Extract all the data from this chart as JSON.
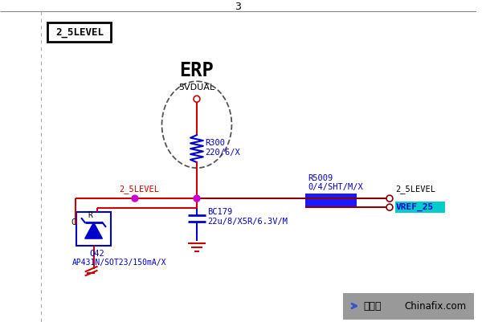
{
  "bg": "white",
  "red": "#cc0000",
  "blue": "#0000cc",
  "magenta": "#cc00cc",
  "dark_red": "#880000",
  "lw": 1.5,
  "label_2_5level": "2_5LEVEL",
  "erp": "ERP",
  "5vdual": "5VDUAL",
  "r300": "R300\n220/6/X",
  "r5009": "R5009\n0/4/SHT/M/X",
  "bc179": "BC179\n22u/8/X5R/6.3V/M",
  "q42": "Q42",
  "q42part": "AP431N/SOT23/150mA/X",
  "vref25": "VREF_25",
  "net1": "2_5LEVEL",
  "net2": "2_5LEVEL",
  "watermark1": "迅维网",
  "watermark2": "Chinafix.com",
  "title_num": "3"
}
